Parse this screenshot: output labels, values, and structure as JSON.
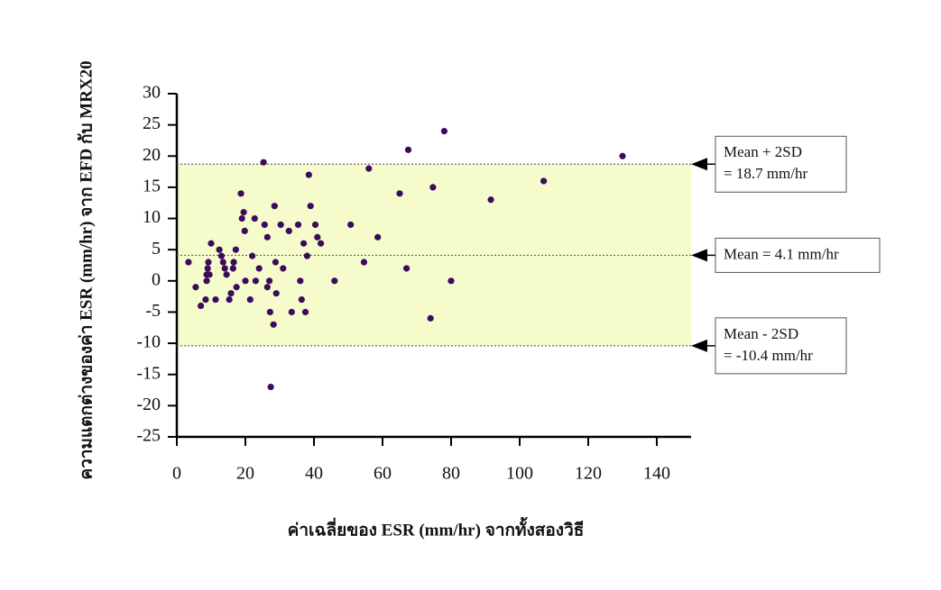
{
  "chart_data": {
    "type": "scatter",
    "x_label": "ค่าเฉลี่ยของ ESR (mm/hr) จากทั้งสองวิธี",
    "y_label": "ความแตกต่างของค่า ESR (mm/hr) จาก EFD กับ MRX20",
    "xlim": [
      0,
      150
    ],
    "ylim": [
      -25,
      30
    ],
    "xticks": [
      0,
      20,
      40,
      60,
      80,
      100,
      120,
      140
    ],
    "yticks": [
      -25,
      -20,
      -15,
      -10,
      -5,
      0,
      5,
      10,
      15,
      20,
      25,
      30
    ],
    "series": [
      {
        "color": "#3b0b5c",
        "x": [
          3.4,
          5.5,
          7,
          8.4,
          8.7,
          8.7,
          9,
          9.2,
          9.5,
          10,
          11.3,
          12.4,
          13,
          13.5,
          14,
          14.5,
          15.3,
          15.8,
          16.4,
          16.6,
          17.2,
          17.4,
          18.7,
          19,
          19.5,
          19.8,
          20,
          21.4,
          22,
          22.7,
          23,
          24,
          25.3,
          25.6,
          26.4,
          26.4,
          27,
          27.2,
          27.4,
          28.2,
          28.5,
          28.8,
          29,
          30.3,
          31,
          32.7,
          33.5,
          35.4,
          36,
          36.4,
          37,
          37.5,
          38,
          38.5,
          39,
          40.4,
          41,
          42,
          46,
          50.7,
          54.6,
          56,
          58.6,
          65,
          67,
          67.5,
          74,
          74.7,
          78,
          80,
          91.6,
          107,
          130
        ],
        "values": [
          3,
          -1,
          -4,
          -3,
          0,
          1,
          2,
          3,
          1,
          6,
          -3,
          5,
          4,
          3,
          2,
          1,
          -3,
          -2,
          2,
          3,
          5,
          -1,
          14,
          10,
          11,
          8,
          0,
          -3,
          4,
          10,
          0,
          2,
          19,
          9,
          7,
          -1,
          0,
          -5,
          -17,
          -7,
          12,
          3,
          -2,
          9,
          2,
          8,
          -5,
          9,
          0,
          -3,
          6,
          -5,
          4,
          17,
          12,
          9,
          7,
          6,
          0,
          9,
          3,
          18,
          7,
          14,
          2,
          21,
          -6,
          15,
          24,
          0,
          13,
          16,
          20
        ]
      }
    ],
    "reference_lines": [
      {
        "value": 18.7,
        "label": [
          "Mean + 2SD",
          "= 18.7 mm/hr"
        ]
      },
      {
        "value": 4.1,
        "label": [
          "Mean = 4.1 mm/hr"
        ]
      },
      {
        "value": -10.4,
        "label": [
          "Mean - 2SD",
          "= -10.4 mm/hr"
        ]
      }
    ],
    "band_color": "#f6fbcc"
  }
}
